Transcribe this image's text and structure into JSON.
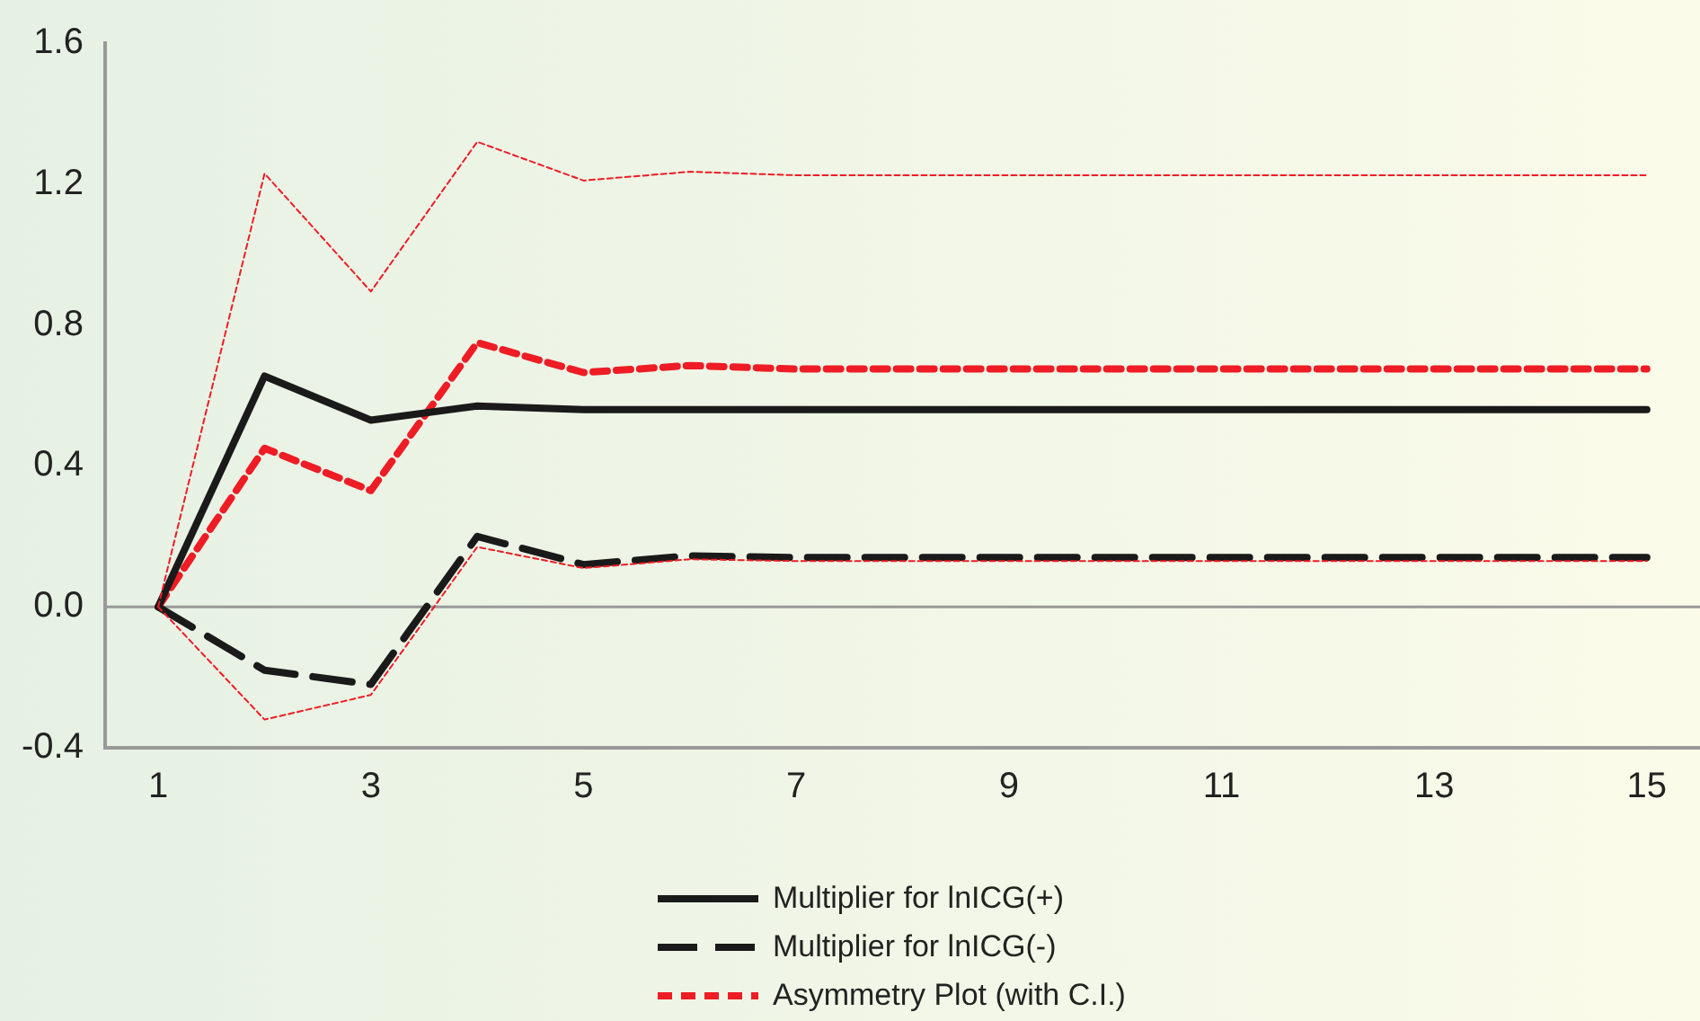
{
  "chart_data": {
    "type": "line",
    "x": [
      1,
      2,
      3,
      4,
      5,
      6,
      7,
      8,
      9,
      10,
      11,
      12,
      13,
      14,
      15
    ],
    "series": [
      {
        "name": "Multiplier for lnICG(+)",
        "color": "#1a1a1a",
        "line_style": "solid",
        "values": [
          0,
          0.655,
          0.53,
          0.57,
          0.56,
          0.56,
          0.56,
          0.56,
          0.56,
          0.56,
          0.56,
          0.56,
          0.56,
          0.56,
          0.56
        ]
      },
      {
        "name": "Multiplier for lnICG(-)",
        "color": "#1a1a1a",
        "line_style": "dashed",
        "values": [
          0,
          -0.18,
          -0.22,
          0.2,
          0.12,
          0.145,
          0.14,
          0.14,
          0.14,
          0.14,
          0.14,
          0.14,
          0.14,
          0.14,
          0.14
        ]
      },
      {
        "name": "Asymmetry Plot (with C.I.)",
        "color": "#ee1c25",
        "line_style": "dashed",
        "values": [
          0,
          0.45,
          0.33,
          0.75,
          0.665,
          0.685,
          0.675,
          0.675,
          0.675,
          0.675,
          0.675,
          0.675,
          0.675,
          0.675,
          0.675
        ]
      },
      {
        "color": "#ee1c25",
        "line_style": "dashed",
        "values": [
          0,
          1.23,
          0.895,
          1.32,
          1.21,
          1.235,
          1.225,
          1.225,
          1.225,
          1.225,
          1.225,
          1.225,
          1.225,
          1.225,
          1.225
        ]
      },
      {
        "color": "#ee1c25",
        "line_style": "dashed",
        "values": [
          0,
          -0.32,
          -0.25,
          0.17,
          0.11,
          0.135,
          0.13,
          0.13,
          0.13,
          0.13,
          0.13,
          0.13,
          0.13,
          0.13,
          0.13
        ]
      }
    ],
    "xlim": [
      0.5,
      15.5
    ],
    "xticks": [
      1,
      3,
      5,
      7,
      9,
      11,
      13,
      15
    ],
    "ylim": [
      -0.4,
      1.6
    ],
    "yticks": [
      -0.4,
      {
        "value": 0,
        "label": "0.0"
      },
      0.4,
      0.8,
      1.2,
      1.6
    ],
    "ref_lines": [
      {
        "axis": "y",
        "value": 0,
        "color": "#999999"
      }
    ],
    "grid": false,
    "legend": "bottom",
    "marker": "none"
  }
}
